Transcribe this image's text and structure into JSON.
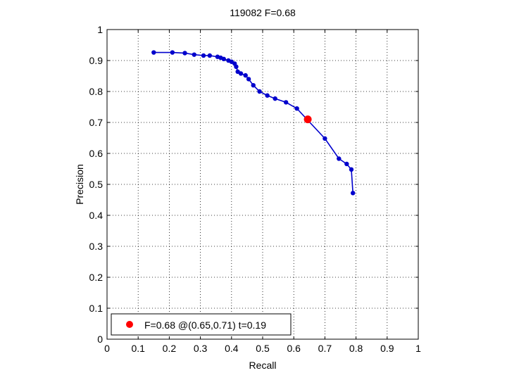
{
  "chart_data": {
    "type": "line",
    "title": "119082 F=0.68",
    "xlabel": "Recall",
    "ylabel": "Precision",
    "xlim": [
      0,
      1
    ],
    "ylim": [
      0,
      1
    ],
    "grid": true,
    "grid_style": "dotted",
    "xticks": [
      "0",
      "0.1",
      "0.2",
      "0.3",
      "0.4",
      "0.5",
      "0.6",
      "0.7",
      "0.8",
      "0.9",
      "1"
    ],
    "yticks": [
      "0",
      "0.1",
      "0.2",
      "0.3",
      "0.4",
      "0.5",
      "0.6",
      "0.7",
      "0.8",
      "0.9",
      "1"
    ],
    "series": [
      {
        "color": "#0000cc",
        "marker": "dot",
        "points": [
          {
            "x": 0.15,
            "y": 0.926
          },
          {
            "x": 0.21,
            "y": 0.926
          },
          {
            "x": 0.25,
            "y": 0.924
          },
          {
            "x": 0.28,
            "y": 0.919
          },
          {
            "x": 0.31,
            "y": 0.916
          },
          {
            "x": 0.33,
            "y": 0.916
          },
          {
            "x": 0.355,
            "y": 0.912
          },
          {
            "x": 0.365,
            "y": 0.909
          },
          {
            "x": 0.375,
            "y": 0.905
          },
          {
            "x": 0.39,
            "y": 0.9
          },
          {
            "x": 0.4,
            "y": 0.896
          },
          {
            "x": 0.41,
            "y": 0.89
          },
          {
            "x": 0.415,
            "y": 0.88
          },
          {
            "x": 0.42,
            "y": 0.864
          },
          {
            "x": 0.43,
            "y": 0.858
          },
          {
            "x": 0.445,
            "y": 0.852
          },
          {
            "x": 0.455,
            "y": 0.84
          },
          {
            "x": 0.47,
            "y": 0.82
          },
          {
            "x": 0.49,
            "y": 0.8
          },
          {
            "x": 0.515,
            "y": 0.787
          },
          {
            "x": 0.54,
            "y": 0.777
          },
          {
            "x": 0.575,
            "y": 0.765
          },
          {
            "x": 0.61,
            "y": 0.745
          },
          {
            "x": 0.7,
            "y": 0.648
          },
          {
            "x": 0.745,
            "y": 0.583
          },
          {
            "x": 0.77,
            "y": 0.566
          },
          {
            "x": 0.785,
            "y": 0.548
          },
          {
            "x": 0.79,
            "y": 0.472
          }
        ]
      }
    ],
    "highlight_point": {
      "x": 0.645,
      "y": 0.71,
      "color": "#ff0000"
    },
    "legend": {
      "placement": "bottom-left",
      "entries": [
        {
          "label": "F=0.68 @(0.65,0.71) t=0.19",
          "color": "#ff0000",
          "marker": "dot"
        }
      ]
    }
  }
}
